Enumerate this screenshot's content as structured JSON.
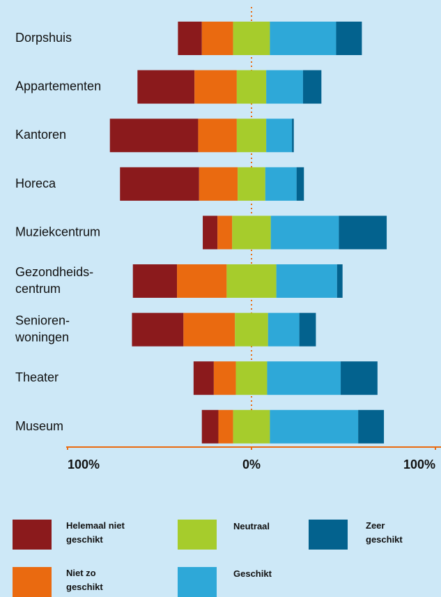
{
  "chart_data": {
    "type": "diverging_bar",
    "categories": [
      "Dorpshuis",
      "Appartementen",
      "Kantoren",
      "Horeca",
      "Muziekcentrum",
      "Gezondheids-\ncentrum",
      "Senioren-\nwoningen",
      "Theater",
      "Museum"
    ],
    "series": [
      {
        "name": "Helemaal niet\ngeschikt",
        "color": "#8b1a1c",
        "values": [
          13,
          31,
          48,
          43,
          8,
          24,
          28,
          11,
          9
        ]
      },
      {
        "name": "Niet zo\ngeschikt",
        "color": "#ea6a10",
        "values": [
          17,
          23,
          21,
          21,
          8,
          27,
          28,
          12,
          8
        ]
      },
      {
        "name": "Neutraal",
        "color": "#a6cc2c",
        "values": [
          20,
          16,
          16,
          15,
          21,
          27,
          18,
          17,
          20
        ]
      },
      {
        "name": "Geschikt",
        "color": "#2ea8d8",
        "values": [
          36,
          20,
          14,
          17,
          37,
          33,
          17,
          40,
          48
        ]
      },
      {
        "name": "Zeer\ngeschikt",
        "color": "#03628e",
        "values": [
          14,
          10,
          1,
          4,
          26,
          3,
          9,
          20,
          14
        ]
      }
    ],
    "xlim": [
      -100,
      100
    ],
    "xticks": [
      {
        "value": -100,
        "label": "100%"
      },
      {
        "value": 0,
        "label": "0%"
      },
      {
        "value": 100,
        "label": "100%"
      }
    ]
  }
}
